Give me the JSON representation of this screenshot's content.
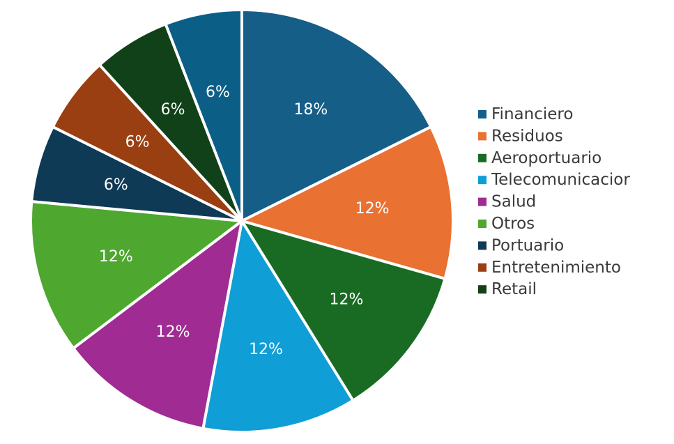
{
  "chart_data": {
    "type": "pie",
    "labels": [
      "Financiero",
      "Residuos",
      "Aeroportuario",
      "Telecomunicacior",
      "Salud",
      "Otros",
      "Portuario",
      "Entretenimiento",
      "Retail",
      ""
    ],
    "values": [
      18,
      12,
      12,
      12,
      12,
      12,
      6,
      6,
      6,
      6
    ],
    "value_labels": [
      "18%",
      "12%",
      "12%",
      "12%",
      "12%",
      "12%",
      "6%",
      "6%",
      "6%",
      "6%"
    ],
    "colors": [
      "#155e87",
      "#e97132",
      "#196b24",
      "#0f9ed5",
      "#a02b93",
      "#4ea72e",
      "#0e3a56",
      "#9a3f11",
      "#114118",
      "#0b5e86"
    ],
    "legend": {
      "position": "right",
      "entries": [
        {
          "label": "Financiero",
          "color": "#155e87"
        },
        {
          "label": "Residuos",
          "color": "#e97132"
        },
        {
          "label": "Aeroportuario",
          "color": "#196b24"
        },
        {
          "label": "Telecomunicacior",
          "color": "#0f9ed5"
        },
        {
          "label": "Salud",
          "color": "#a02b93"
        },
        {
          "label": "Otros",
          "color": "#4ea72e"
        },
        {
          "label": "Portuario",
          "color": "#0e3a56"
        },
        {
          "label": "Entretenimiento",
          "color": "#9a3f11"
        },
        {
          "label": "Retail",
          "color": "#114118"
        }
      ]
    },
    "title": "",
    "slice_border_color": "#ffffff",
    "label_color": "#ffffff"
  }
}
